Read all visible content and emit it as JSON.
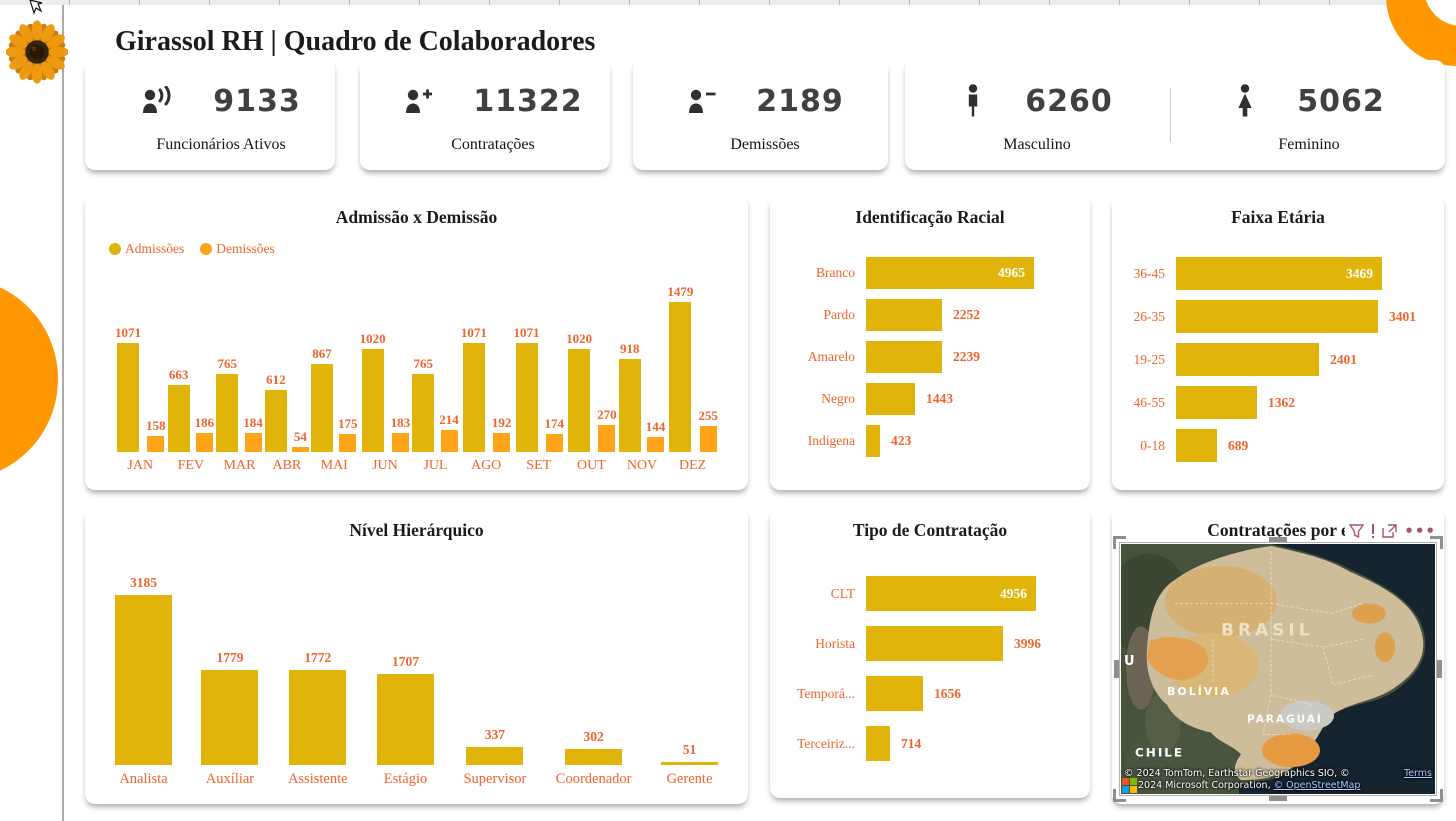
{
  "page": {
    "title": "Girassol RH | Quadro de Colaboradores"
  },
  "colors": {
    "bar_gold": "#E1B40A",
    "bar_orange": "#FFA319",
    "label_orange": "#F0642D",
    "title_text": "#1B1B1B",
    "kpi_number": "#404040",
    "decor_orange": "#FF9800",
    "map_ocean": "#15242F",
    "map_land_tan": "#CDBD9B",
    "link_blue": "#AECAFF"
  },
  "kpis": [
    {
      "icon": "people-icon",
      "value": "9133",
      "label": "Funcionários Ativos"
    },
    {
      "icon": "person-plus-icon",
      "value": "11322",
      "label": "Contratações"
    },
    {
      "icon": "person-minus-icon",
      "value": "2189",
      "label": "Demissões"
    },
    {
      "icon": "male-icon",
      "value": "6260",
      "label": "Masculino"
    },
    {
      "icon": "female-icon",
      "value": "5062",
      "label": "Feminino"
    }
  ],
  "chart_data": [
    {
      "type": "bar",
      "orientation": "vertical",
      "title": "Admissão x Demissão",
      "legend_position": "top-left",
      "axis": "none",
      "data_labels": true,
      "categories": [
        "JAN",
        "FEV",
        "MAR",
        "ABR",
        "MAI",
        "JUN",
        "JUL",
        "AGO",
        "SET",
        "OUT",
        "NOV",
        "DEZ"
      ],
      "series": [
        {
          "name": "Admissões",
          "color": "#E1B40A",
          "values": [
            1071,
            663,
            765,
            612,
            867,
            1020,
            765,
            1071,
            1071,
            1020,
            918,
            1479
          ]
        },
        {
          "name": "Demissões",
          "color": "#FFA319",
          "values": [
            158,
            186,
            184,
            54,
            175,
            183,
            214,
            192,
            174,
            270,
            144,
            255
          ]
        }
      ]
    },
    {
      "type": "bar",
      "orientation": "horizontal",
      "title": "Identificação Racial",
      "axis": "none",
      "data_labels": true,
      "categories": [
        "Branco",
        "Pardo",
        "Amarelo",
        "Negro",
        "Indígena"
      ],
      "values": [
        4965,
        2252,
        2239,
        1443,
        423
      ]
    },
    {
      "type": "bar",
      "orientation": "horizontal",
      "title": "Faixa Etária",
      "axis": "none",
      "data_labels": true,
      "categories": [
        "36-45",
        "26-35",
        "19-25",
        "46-55",
        "0-18"
      ],
      "values": [
        3469,
        3401,
        2401,
        1362,
        689
      ]
    },
    {
      "type": "bar",
      "orientation": "vertical",
      "title": "Nível Hierárquico",
      "axis": "none",
      "data_labels": true,
      "categories": [
        "Analista",
        "Auxíliar",
        "Assistente",
        "Estágio",
        "Supervisor",
        "Coordenador",
        "Gerente"
      ],
      "values": [
        3185,
        1779,
        1772,
        1707,
        337,
        302,
        51
      ]
    },
    {
      "type": "bar",
      "orientation": "horizontal",
      "title": "Tipo de Contratação",
      "axis": "none",
      "data_labels": true,
      "categories": [
        "CLT",
        "Horista",
        "Temporá...",
        "Terceiriz..."
      ],
      "values": [
        4956,
        3996,
        1656,
        714
      ]
    },
    {
      "type": "map",
      "title": "Contratações por e",
      "header_icons": [
        "filter-icon",
        "focus-mode-icon",
        "more-options-icon"
      ],
      "labels": {
        "brasil": "BRASIL",
        "bolivia": "BOLÍVIA",
        "paraguai": "PARAGUAI",
        "chile": "CHILE",
        "peru_truncated": "U"
      },
      "attribution": {
        "line1": "© 2024 TomTom, Earthstar Geographics SIO, ©",
        "terms_label": "Terms",
        "line2": "2024 Microsoft Corporation, ",
        "osm_label": "© OpenStreetMap"
      }
    }
  ]
}
